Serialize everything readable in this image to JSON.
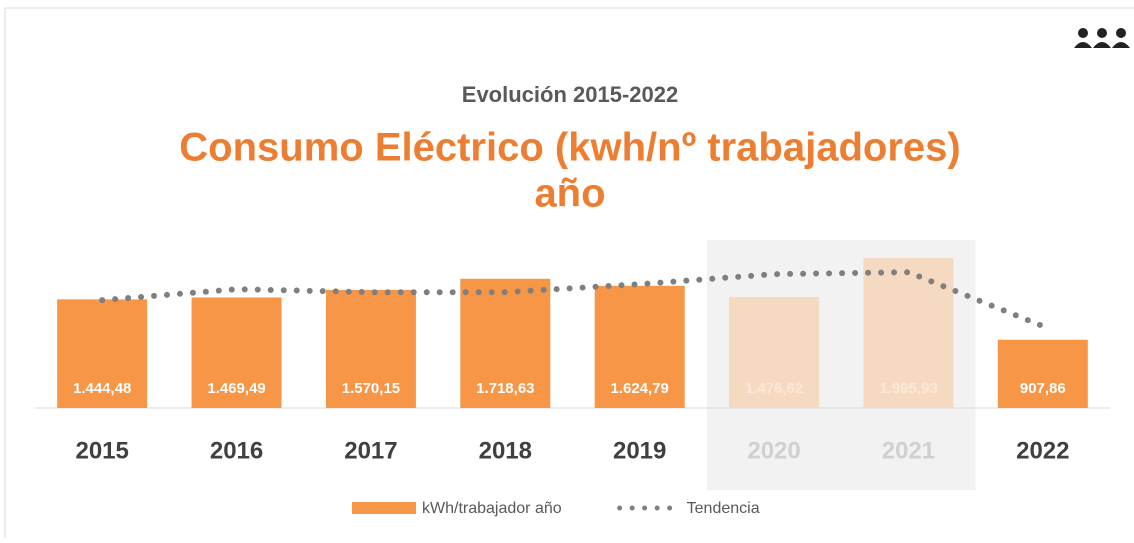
{
  "chart_data": {
    "type": "bar",
    "subtitle": "Evolución 2015-2022",
    "title": [
      "Consumo Eléctrico (kwh/nº trabajadores)",
      "año"
    ],
    "categories": [
      "2015",
      "2016",
      "2017",
      "2018",
      "2019",
      "2020",
      "2021",
      "2022"
    ],
    "ylim": [
      0,
      2500
    ],
    "shaded": [
      5,
      6
    ],
    "series": [
      {
        "name": "kWh/trabajador año",
        "type": "bar",
        "color": "#F79646",
        "colors": [
          "#F79646",
          "#F79646",
          "#F79646",
          "#F79646",
          "#F79646",
          "#F5D9C0",
          "#F5D9C0",
          "#F79646"
        ],
        "values": [
          1444.48,
          1469.49,
          1570.15,
          1718.63,
          1624.79,
          1476.62,
          1995.93,
          907.86
        ],
        "value_labels": [
          "1.444,48",
          "1.469,49",
          "1.570,15",
          "1.718,63",
          "1.624,79",
          "1.476,62",
          "1.995,93",
          "907,86"
        ]
      },
      {
        "name": "Tendencia",
        "type": "line",
        "style": "dotted",
        "color": "#7F7F7F",
        "values": [
          1434,
          1580,
          1540,
          1540,
          1647,
          1780,
          1806,
          1089
        ]
      }
    ]
  }
}
